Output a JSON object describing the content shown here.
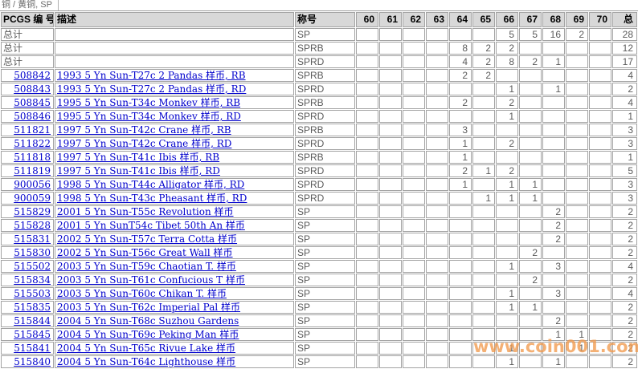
{
  "title": "铜 / 黄铜, SP",
  "watermark": "www.coin001.com",
  "colors": {
    "link_blue": "#0000cc",
    "header_bg": "#d8d8d8",
    "grid_gray": "#a3a3a3",
    "text_gray": "#5a5a5a",
    "watermark_orange": "#f19a4e"
  },
  "table": {
    "headers": {
      "pcgs": "PCGS 编 号",
      "desc": "描述",
      "designation": "称号",
      "total": "总"
    },
    "grade_columns": [
      "60",
      "61",
      "62",
      "63",
      "64",
      "65",
      "66",
      "67",
      "68",
      "69",
      "70"
    ],
    "rows": [
      {
        "pcgs": "总计",
        "desc": "",
        "designation": "SP",
        "is_link": false,
        "grades": {
          "66": 5,
          "67": 5,
          "68": 16,
          "69": 2
        },
        "total": 28
      },
      {
        "pcgs": "总计",
        "desc": "",
        "designation": "SPRB",
        "is_link": false,
        "grades": {
          "64": 8,
          "65": 2,
          "66": 2
        },
        "total": 12
      },
      {
        "pcgs": "总计",
        "desc": "",
        "designation": "SPRD",
        "is_link": false,
        "grades": {
          "64": 4,
          "65": 2,
          "66": 8,
          "67": 2,
          "68": 1
        },
        "total": 17
      },
      {
        "pcgs": "508842",
        "desc": "1993 5 Yn Sun-T27c 2 Pandas 样币, RB",
        "designation": "SPRB",
        "is_link": true,
        "grades": {
          "64": 2,
          "65": 2
        },
        "total": 4
      },
      {
        "pcgs": "508843",
        "desc": "1993 5 Yn Sun-T27c 2 Pandas 样币, RD",
        "designation": "SPRD",
        "is_link": true,
        "grades": {
          "66": 1,
          "68": 1
        },
        "total": 2
      },
      {
        "pcgs": "508845",
        "desc": "1995 5 Yn Sun-T34c Monkev 样币, RB",
        "designation": "SPRB",
        "is_link": true,
        "grades": {
          "64": 2,
          "66": 2
        },
        "total": 4
      },
      {
        "pcgs": "508846",
        "desc": "1995 5 Yn Sun-T34c Monkev 样币, RD",
        "designation": "SPRD",
        "is_link": true,
        "grades": {
          "66": 1
        },
        "total": 1
      },
      {
        "pcgs": "511821",
        "desc": "1997 5 Yn Sun-T42c Crane 样币, RB",
        "designation": "SPRB",
        "is_link": true,
        "grades": {
          "64": 3
        },
        "total": 3
      },
      {
        "pcgs": "511822",
        "desc": "1997 5 Yn Sun-T42c Crane 样币, RD",
        "designation": "SPRD",
        "is_link": true,
        "grades": {
          "64": 1,
          "66": 2
        },
        "total": 3
      },
      {
        "pcgs": "511818",
        "desc": "1997 5 Yn Sun-T41c Ibis 样币, RB",
        "designation": "SPRB",
        "is_link": true,
        "grades": {
          "64": 1
        },
        "total": 1
      },
      {
        "pcgs": "511819",
        "desc": "1997 5 Yn Sun-T41c Ibis 样币, RD",
        "designation": "SPRD",
        "is_link": true,
        "grades": {
          "64": 2,
          "65": 1,
          "66": 2
        },
        "total": 5
      },
      {
        "pcgs": "900056",
        "desc": "1998 5 Yn Sun-T44c Alligator 样币, RD",
        "designation": "SPRD",
        "is_link": true,
        "grades": {
          "64": 1,
          "66": 1,
          "67": 1
        },
        "total": 3
      },
      {
        "pcgs": "900059",
        "desc": "1998 5 Yn Sun-T43c Pheasant 样币, RD",
        "designation": "SPRD",
        "is_link": true,
        "grades": {
          "65": 1,
          "66": 1,
          "67": 1
        },
        "total": 3
      },
      {
        "pcgs": "515829",
        "desc": "2001 5 Yn Sun-T55c Revolution 样币",
        "designation": "SP",
        "is_link": true,
        "grades": {
          "68": 2
        },
        "total": 2
      },
      {
        "pcgs": "515828",
        "desc": "2001 5 Yn SunT54c Tibet 50th An 样币",
        "designation": "SP",
        "is_link": true,
        "grades": {
          "68": 2
        },
        "total": 2
      },
      {
        "pcgs": "515831",
        "desc": "2002 5 Yn Sun-T57c Terra Cotta 样币",
        "designation": "SP",
        "is_link": true,
        "grades": {
          "68": 2
        },
        "total": 2
      },
      {
        "pcgs": "515830",
        "desc": "2002 5 Yn Sun-T56c Great Wall 样币",
        "designation": "SP",
        "is_link": true,
        "grades": {
          "67": 2
        },
        "total": 2
      },
      {
        "pcgs": "515502",
        "desc": "2003 5 Yn Sun-T59c Chaotian T. 样币",
        "designation": "SP",
        "is_link": true,
        "grades": {
          "66": 1,
          "68": 3
        },
        "total": 4
      },
      {
        "pcgs": "515834",
        "desc": "2003 5 Yn Sun-T61c Confucious T 样币",
        "designation": "SP",
        "is_link": true,
        "grades": {
          "67": 2
        },
        "total": 2
      },
      {
        "pcgs": "515503",
        "desc": "2003 5 Yn Sun-T60c Chikan T. 样币",
        "designation": "SP",
        "is_link": true,
        "grades": {
          "66": 1,
          "68": 3
        },
        "total": 4
      },
      {
        "pcgs": "515835",
        "desc": "2003 5 Yn Sun-T62c Imperial Pal 样币",
        "designation": "SP",
        "is_link": true,
        "grades": {
          "66": 1,
          "67": 1
        },
        "total": 2
      },
      {
        "pcgs": "515844",
        "desc": "2004 5 Yn Sun-T68c Suzhou Gardens",
        "designation": "SP",
        "is_link": true,
        "grades": {
          "68": 2
        },
        "total": 2
      },
      {
        "pcgs": "515845",
        "desc": "2004 5 Yn Sun-T69c Peking Man 样币",
        "designation": "SP",
        "is_link": true,
        "grades": {
          "68": 1,
          "69": 1
        },
        "total": 2
      },
      {
        "pcgs": "515841",
        "desc": "2004 5 Yn Sun-T65c Rivue Lake 样币",
        "designation": "SP",
        "is_link": true,
        "grades": {
          "66": 1,
          "69": 1
        },
        "total": 2
      },
      {
        "pcgs": "515840",
        "desc": "2004 5 Yn Sun-T64c Lighthouse 样币",
        "designation": "SP",
        "is_link": true,
        "grades": {
          "66": 1,
          "68": 1
        },
        "total": 2
      }
    ]
  }
}
